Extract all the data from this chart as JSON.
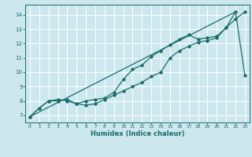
{
  "xlabel": "Humidex (Indice chaleur)",
  "background_color": "#cce8ee",
  "grid_color": "#ffffff",
  "line_color": "#1a6b6b",
  "xlim": [
    -0.5,
    23.5
  ],
  "ylim": [
    6.5,
    14.7
  ],
  "xticks": [
    0,
    1,
    2,
    3,
    4,
    5,
    6,
    7,
    8,
    9,
    10,
    11,
    12,
    13,
    14,
    15,
    16,
    17,
    18,
    19,
    20,
    21,
    22,
    23
  ],
  "yticks": [
    7,
    8,
    9,
    10,
    11,
    12,
    13,
    14
  ],
  "line1_x": [
    0,
    1,
    2,
    3,
    4,
    5,
    6,
    7,
    8,
    9,
    10,
    11,
    12,
    13,
    14,
    15,
    16,
    17,
    18,
    19,
    20,
    21,
    22,
    23
  ],
  "line1_y": [
    6.9,
    7.5,
    8.0,
    8.0,
    8.1,
    7.8,
    7.7,
    7.8,
    8.1,
    8.4,
    8.7,
    9.0,
    9.3,
    9.7,
    10.0,
    11.0,
    11.5,
    11.8,
    12.1,
    12.2,
    12.4,
    13.1,
    13.7,
    14.2
  ],
  "line2_x": [
    0,
    1,
    2,
    3,
    4,
    5,
    6,
    7,
    8,
    9,
    10,
    11,
    12,
    13,
    14,
    15,
    16,
    17,
    18,
    19,
    20,
    21,
    22,
    23
  ],
  "line2_y": [
    6.9,
    7.5,
    8.0,
    8.1,
    8.0,
    7.8,
    8.0,
    8.1,
    8.2,
    8.6,
    9.5,
    10.2,
    10.5,
    11.1,
    11.5,
    11.9,
    12.3,
    12.6,
    12.3,
    12.4,
    12.5,
    13.1,
    14.2,
    9.8
  ],
  "line3_x": [
    0,
    22
  ],
  "line3_y": [
    6.9,
    14.2
  ]
}
